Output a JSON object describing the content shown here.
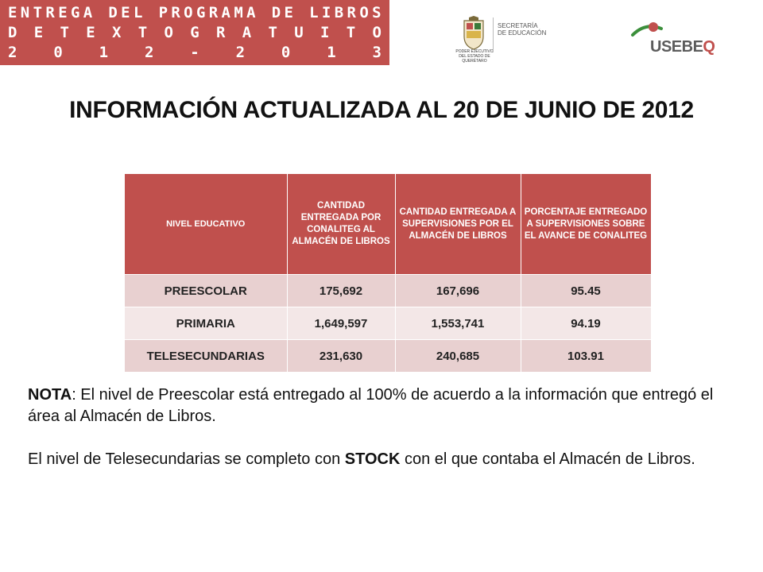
{
  "banner": {
    "line1": [
      "E",
      "N",
      "T",
      "R",
      "E",
      "G",
      "A",
      " ",
      "D",
      "E",
      "L",
      " ",
      "P",
      "R",
      "O",
      "G",
      "R",
      "A",
      "M",
      "A",
      " ",
      "D",
      "E",
      " ",
      "L",
      "I",
      "B",
      "R",
      "O",
      "S"
    ],
    "line2": [
      "D",
      "E",
      "T",
      "E",
      "X",
      "T",
      "O",
      "G",
      "R",
      "A",
      "T",
      "U",
      "I",
      "T",
      "O"
    ],
    "line3": [
      "2",
      "0",
      "1",
      "2",
      "-",
      "2",
      "0",
      "1",
      "3"
    ],
    "color": "#c0504d"
  },
  "logos": {
    "state_label": "PODER EJECUTIVO DEL ESTADO DE QUERÉTARO",
    "secretaria_label": "SECRETARÍA\nDE EDUCACIÓN",
    "usebeq_prefix": "USEBE",
    "usebeq_suffix": "Q"
  },
  "title": "INFORMACIÓN ACTUALIZADA AL 20 DE JUNIO DE 2012",
  "table": {
    "headers": [
      "NIVEL EDUCATIVO",
      "CANTIDAD ENTREGADA POR CONALITEG AL ALMACÉN DE LIBROS",
      "CANTIDAD ENTREGADA A SUPERVISIONES POR EL ALMACÉN DE LIBROS",
      "PORCENTAJE ENTREGADO A SUPERVISIONES SOBRE EL AVANCE DE CONALITEG"
    ],
    "rows": [
      {
        "nivel": "PREESCOLAR",
        "conaliteg": "175,692",
        "supervisiones": "167,696",
        "porcentaje": "95.45"
      },
      {
        "nivel": "PRIMARIA",
        "conaliteg": "1,649,597",
        "supervisiones": "1,553,741",
        "porcentaje": "94.19"
      },
      {
        "nivel": "TELESECUNDARIAS",
        "conaliteg": "231,630",
        "supervisiones": "240,685",
        "porcentaje": "103.91"
      }
    ]
  },
  "note": {
    "label": "NOTA",
    "text1": ": El nivel de Preescolar está entregado al 100% de acuerdo a la información que entregó el área al Almacén de Libros.",
    "text2_a": "El nivel de Telesecundarias se completo con ",
    "text2_b": "STOCK",
    "text2_c": " con el que contaba el Almacén de Libros."
  }
}
